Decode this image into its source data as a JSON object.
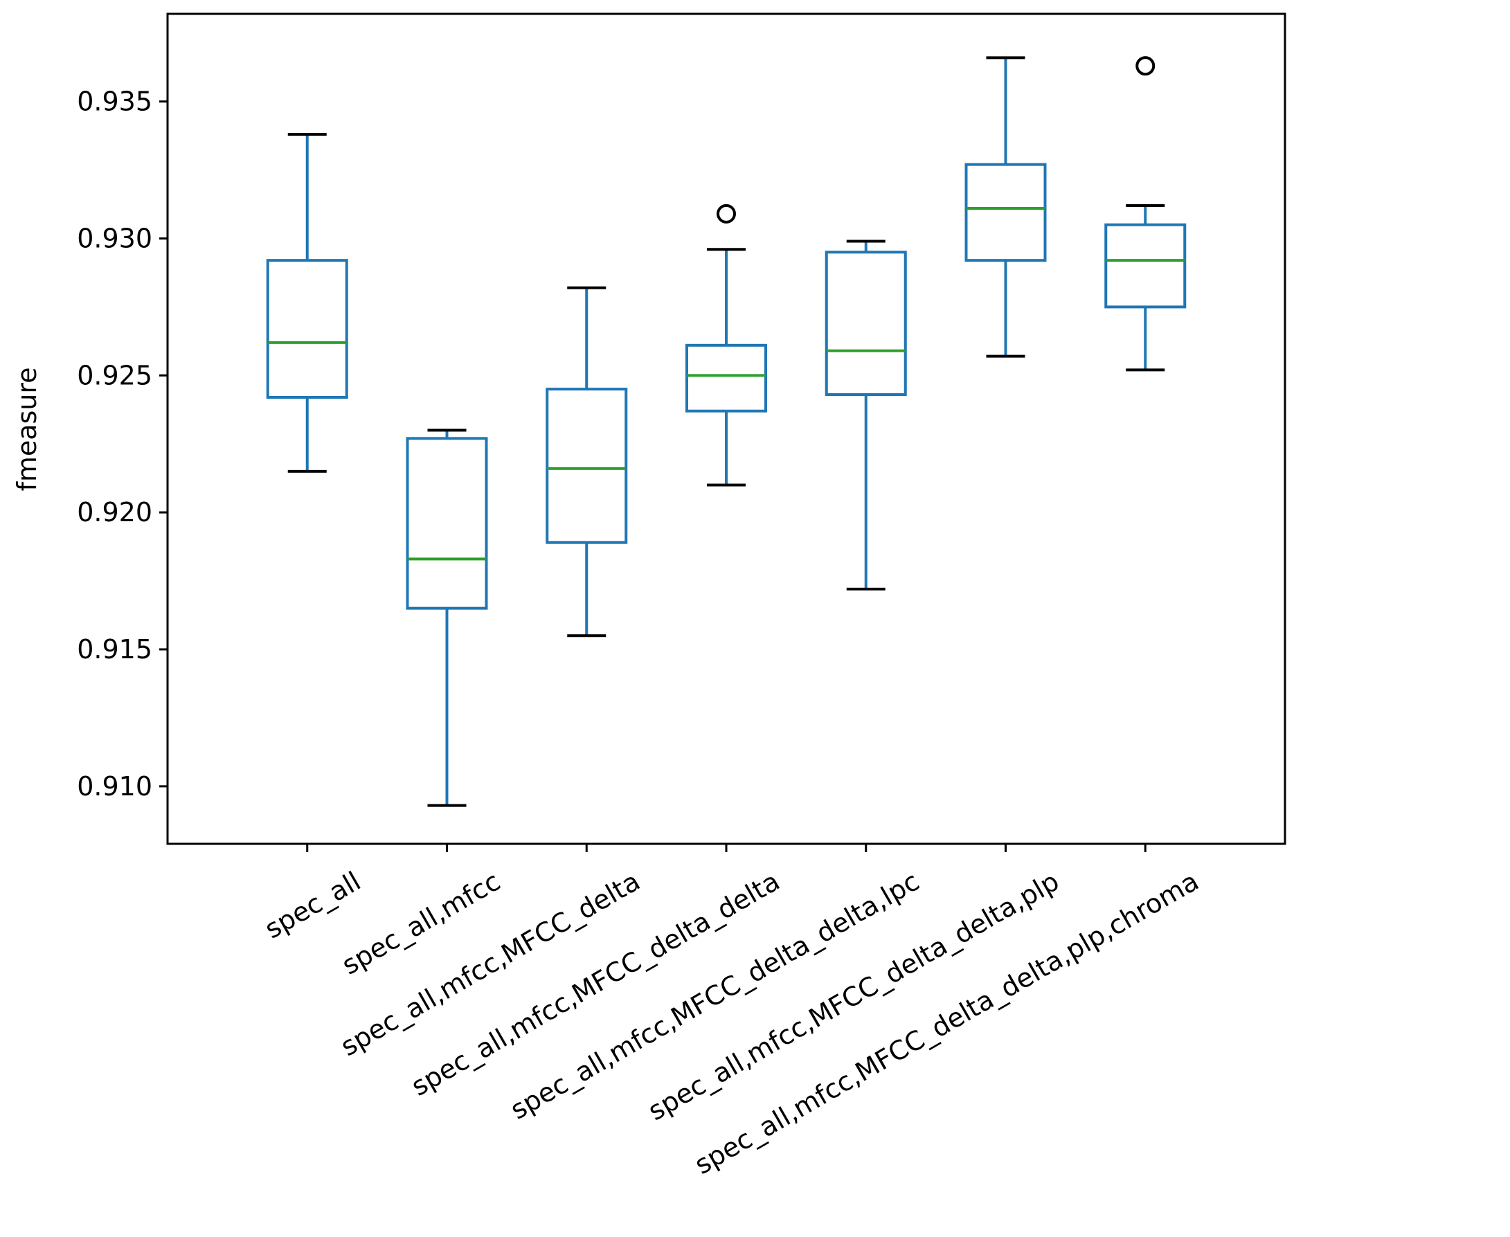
{
  "chart_data": {
    "type": "box",
    "title": "",
    "xlabel": "",
    "ylabel": "fmeasure",
    "ylim": [
      0.9079,
      0.9382
    ],
    "yticks": [
      "0.910",
      "0.915",
      "0.920",
      "0.925",
      "0.930",
      "0.935"
    ],
    "categories": [
      "spec_all",
      "spec_all,mfcc",
      "spec_all,mfcc,MFCC_delta",
      "spec_all,mfcc,MFCC_delta_delta",
      "spec_all,mfcc,MFCC_delta_delta,lpc",
      "spec_all,mfcc,MFCC_delta_delta,plp",
      "spec_all,mfcc,MFCC_delta_delta,plp,chroma"
    ],
    "boxes": [
      {
        "whisker_low": 0.9215,
        "q1": 0.9242,
        "median": 0.9262,
        "q3": 0.9292,
        "whisker_high": 0.9338,
        "outliers": []
      },
      {
        "whisker_low": 0.9093,
        "q1": 0.9165,
        "median": 0.9183,
        "q3": 0.9227,
        "whisker_high": 0.923,
        "outliers": []
      },
      {
        "whisker_low": 0.9155,
        "q1": 0.9189,
        "median": 0.9216,
        "q3": 0.9245,
        "whisker_high": 0.9282,
        "outliers": []
      },
      {
        "whisker_low": 0.921,
        "q1": 0.9237,
        "median": 0.925,
        "q3": 0.9261,
        "whisker_high": 0.9296,
        "outliers": [
          0.9309
        ]
      },
      {
        "whisker_low": 0.9172,
        "q1": 0.9243,
        "median": 0.9259,
        "q3": 0.9295,
        "whisker_high": 0.9299,
        "outliers": []
      },
      {
        "whisker_low": 0.9257,
        "q1": 0.9292,
        "median": 0.9311,
        "q3": 0.9327,
        "whisker_high": 0.9366,
        "outliers": []
      },
      {
        "whisker_low": 0.9252,
        "q1": 0.9275,
        "median": 0.9292,
        "q3": 0.9305,
        "whisker_high": 0.9312,
        "outliers": [
          0.9363
        ]
      }
    ],
    "colors": {
      "box": "#1f77b4",
      "median": "#2ca02c",
      "caps": "#000000",
      "outlier": "#000000",
      "axes": "#000000"
    }
  }
}
